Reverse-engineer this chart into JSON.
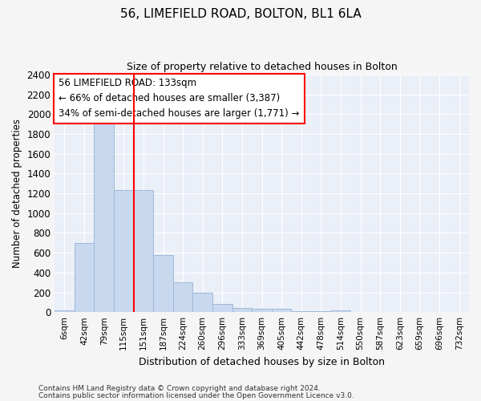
{
  "title": "56, LIMEFIELD ROAD, BOLTON, BL1 6LA",
  "subtitle": "Size of property relative to detached houses in Bolton",
  "xlabel": "Distribution of detached houses by size in Bolton",
  "ylabel": "Number of detached properties",
  "bar_color": "#c8d8ee",
  "bar_edge_color": "#a0b8d8",
  "categories": [
    "6sqm",
    "42sqm",
    "79sqm",
    "115sqm",
    "151sqm",
    "187sqm",
    "224sqm",
    "260sqm",
    "296sqm",
    "333sqm",
    "369sqm",
    "405sqm",
    "442sqm",
    "478sqm",
    "514sqm",
    "550sqm",
    "587sqm",
    "623sqm",
    "659sqm",
    "696sqm",
    "732sqm"
  ],
  "values": [
    15,
    700,
    1950,
    1230,
    1230,
    575,
    305,
    200,
    85,
    45,
    35,
    35,
    8,
    8,
    20,
    5,
    5,
    5,
    5,
    5,
    5
  ],
  "property_line_x": 3.5,
  "annotation_text": "56 LIMEFIELD ROAD: 133sqm\n← 66% of detached houses are smaller (3,387)\n34% of semi-detached houses are larger (1,771) →",
  "ylim": [
    0,
    2400
  ],
  "yticks": [
    0,
    200,
    400,
    600,
    800,
    1000,
    1200,
    1400,
    1600,
    1800,
    2000,
    2200,
    2400
  ],
  "footer_line1": "Contains HM Land Registry data © Crown copyright and database right 2024.",
  "footer_line2": "Contains public sector information licensed under the Open Government Licence v3.0.",
  "plot_bg_color": "#eaeff8",
  "fig_bg_color": "#f5f5f5",
  "grid_color": "#ffffff"
}
